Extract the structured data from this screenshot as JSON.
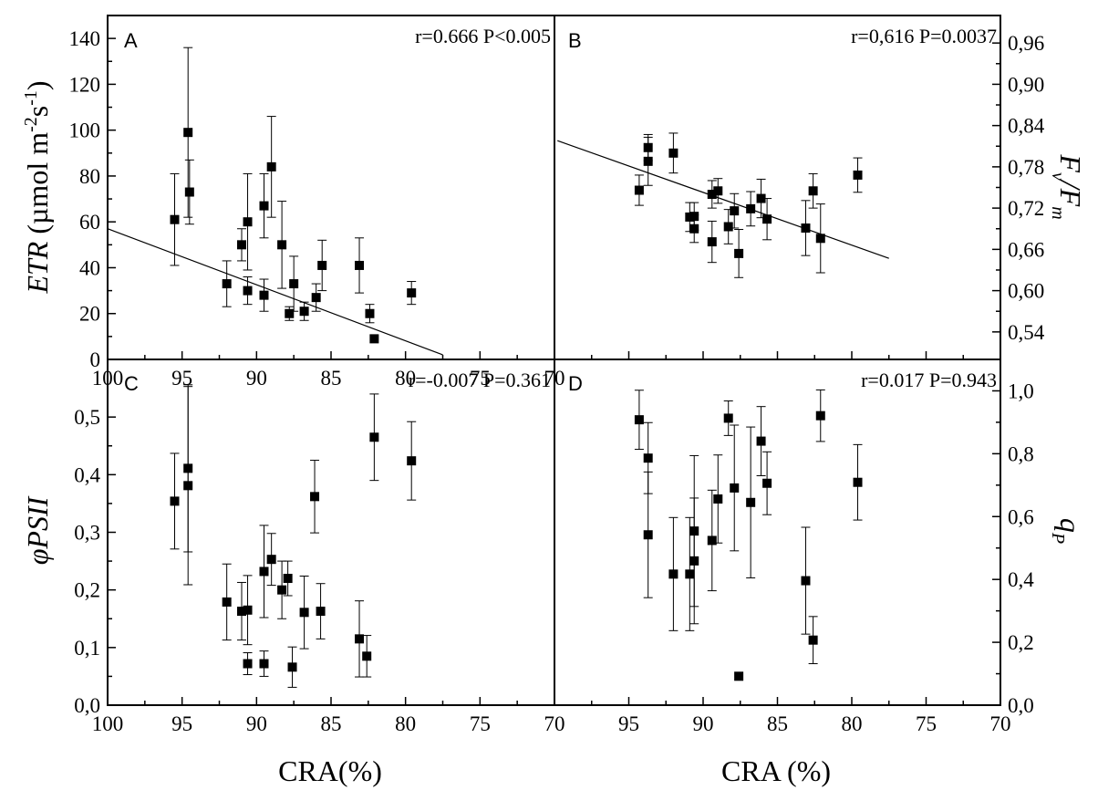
{
  "figure": {
    "xlabel_left": "CRA(%)",
    "xlabel_right": "CRA (%)"
  },
  "chart_data": [
    {
      "panel": "A",
      "type": "scatter",
      "stat": "r=0.666 P<0.005",
      "ylabel": "ETR (µmol m⁻² s⁻¹)",
      "xlim": [
        100,
        70
      ],
      "ylim": [
        0,
        150
      ],
      "x_ticks": [
        "100",
        "95",
        "90",
        "85",
        "80",
        "75",
        "70"
      ],
      "y_ticks": [
        "0",
        "20",
        "40",
        "60",
        "80",
        "100",
        "120",
        "140"
      ],
      "y_axis": "left",
      "regression": {
        "x1": 100,
        "y1": 57,
        "x2": 77.5,
        "y2": 2
      },
      "points": [
        {
          "x": 95.5,
          "y": 61,
          "err": 20
        },
        {
          "x": 94.6,
          "y": 99,
          "err": 37
        },
        {
          "x": 94.5,
          "y": 73,
          "err": 14
        },
        {
          "x": 92.0,
          "y": 33,
          "err": 10
        },
        {
          "x": 91.0,
          "y": 50,
          "err": 7
        },
        {
          "x": 90.6,
          "y": 60,
          "err": 21
        },
        {
          "x": 90.6,
          "y": 30,
          "err": 6
        },
        {
          "x": 89.5,
          "y": 67,
          "err": 14
        },
        {
          "x": 89.5,
          "y": 28,
          "err": 7
        },
        {
          "x": 89.0,
          "y": 84,
          "err": 22
        },
        {
          "x": 88.3,
          "y": 50,
          "err": 19
        },
        {
          "x": 87.8,
          "y": 20,
          "err": 3
        },
        {
          "x": 87.5,
          "y": 33,
          "err": 12
        },
        {
          "x": 86.8,
          "y": 21,
          "err": 4
        },
        {
          "x": 86.0,
          "y": 27,
          "err": 6
        },
        {
          "x": 85.6,
          "y": 41,
          "err": 11
        },
        {
          "x": 83.1,
          "y": 41,
          "err": 12
        },
        {
          "x": 82.4,
          "y": 20,
          "err": 4
        },
        {
          "x": 82.1,
          "y": 9,
          "err": 0
        },
        {
          "x": 79.6,
          "y": 29,
          "err": 5
        }
      ]
    },
    {
      "panel": "B",
      "type": "scatter",
      "stat": "r=0,616 P=0.0037",
      "ylabel": "Fv/Fm",
      "xlim": [
        100,
        70
      ],
      "ylim": [
        0.5,
        1.0
      ],
      "y_ticks": [
        "0,54",
        "0,60",
        "0,66",
        "0,72",
        "0,78",
        "0,84",
        "0,90",
        "0,96"
      ],
      "y_axis": "right",
      "regression": {
        "x1": 99.8,
        "y1": 0.818,
        "x2": 77.5,
        "y2": 0.647
      },
      "points": [
        {
          "x": 94.3,
          "y": 0.746,
          "err": 0.022
        },
        {
          "x": 93.7,
          "y": 0.808,
          "err": 0.019
        },
        {
          "x": 93.7,
          "y": 0.788,
          "err": 0.035
        },
        {
          "x": 92.0,
          "y": 0.8,
          "err": 0.029
        },
        {
          "x": 90.9,
          "y": 0.707,
          "err": 0.021
        },
        {
          "x": 90.6,
          "y": 0.708,
          "err": 0.02
        },
        {
          "x": 90.6,
          "y": 0.69,
          "err": 0.02
        },
        {
          "x": 89.4,
          "y": 0.74,
          "err": 0.02
        },
        {
          "x": 89.4,
          "y": 0.671,
          "err": 0.03
        },
        {
          "x": 89.0,
          "y": 0.745,
          "err": 0.018
        },
        {
          "x": 88.3,
          "y": 0.693,
          "err": 0.025
        },
        {
          "x": 87.9,
          "y": 0.716,
          "err": 0.025
        },
        {
          "x": 87.6,
          "y": 0.654,
          "err": 0.035
        },
        {
          "x": 86.8,
          "y": 0.719,
          "err": 0.025
        },
        {
          "x": 86.1,
          "y": 0.734,
          "err": 0.028
        },
        {
          "x": 85.7,
          "y": 0.704,
          "err": 0.03
        },
        {
          "x": 83.1,
          "y": 0.691,
          "err": 0.04
        },
        {
          "x": 82.6,
          "y": 0.745,
          "err": 0.025
        },
        {
          "x": 82.1,
          "y": 0.676,
          "err": 0.05
        },
        {
          "x": 79.6,
          "y": 0.768,
          "err": 0.025
        }
      ]
    },
    {
      "panel": "C",
      "type": "scatter",
      "stat": "r=-0.007 P=0.361",
      "ylabel": "φPSII",
      "xlim": [
        100,
        70
      ],
      "ylim": [
        0,
        0.6
      ],
      "x_ticks": [
        "100",
        "95",
        "90",
        "85",
        "80",
        "75",
        "70"
      ],
      "y_ticks": [
        "0,0",
        "0,1",
        "0,2",
        "0,3",
        "0,4",
        "0,5"
      ],
      "y_axis": "left",
      "points": [
        {
          "x": 95.5,
          "y": 0.354,
          "err": 0.083
        },
        {
          "x": 94.6,
          "y": 0.411,
          "err": 0.145
        },
        {
          "x": 94.6,
          "y": 0.381,
          "err": 0.172
        },
        {
          "x": 92.0,
          "y": 0.179,
          "err": 0.066
        },
        {
          "x": 91.0,
          "y": 0.163,
          "err": 0.05
        },
        {
          "x": 90.6,
          "y": 0.165,
          "err": 0.06
        },
        {
          "x": 90.6,
          "y": 0.072,
          "err": 0.019
        },
        {
          "x": 89.5,
          "y": 0.232,
          "err": 0.08
        },
        {
          "x": 89.5,
          "y": 0.072,
          "err": 0.022
        },
        {
          "x": 89.0,
          "y": 0.253,
          "err": 0.045
        },
        {
          "x": 88.3,
          "y": 0.2,
          "err": 0.05
        },
        {
          "x": 87.9,
          "y": 0.22,
          "err": 0.03
        },
        {
          "x": 87.6,
          "y": 0.066,
          "err": 0.035
        },
        {
          "x": 86.8,
          "y": 0.161,
          "err": 0.063
        },
        {
          "x": 86.1,
          "y": 0.362,
          "err": 0.063
        },
        {
          "x": 85.7,
          "y": 0.163,
          "err": 0.048
        },
        {
          "x": 83.1,
          "y": 0.115,
          "err": 0.066
        },
        {
          "x": 82.6,
          "y": 0.085,
          "err": 0.036
        },
        {
          "x": 82.1,
          "y": 0.465,
          "err": 0.075
        },
        {
          "x": 79.6,
          "y": 0.424,
          "err": 0.068
        }
      ]
    },
    {
      "panel": "D",
      "type": "scatter",
      "stat": "r=0.017 P=0.943",
      "ylabel": "qP",
      "xlim": [
        100,
        70
      ],
      "ylim": [
        0,
        1.1
      ],
      "x_ticks": [
        "95",
        "90",
        "85",
        "80",
        "75",
        "70"
      ],
      "y_ticks": [
        "0,0",
        "0,2",
        "0,4",
        "0,6",
        "0,8",
        "1,0"
      ],
      "y_axis": "right",
      "points": [
        {
          "x": 94.3,
          "y": 0.908,
          "err": 0.094
        },
        {
          "x": 93.7,
          "y": 0.786,
          "err": 0.113
        },
        {
          "x": 93.7,
          "y": 0.542,
          "err": 0.2
        },
        {
          "x": 92.0,
          "y": 0.417,
          "err": 0.18
        },
        {
          "x": 90.9,
          "y": 0.417,
          "err": 0.18
        },
        {
          "x": 90.6,
          "y": 0.554,
          "err": 0.24
        },
        {
          "x": 90.6,
          "y": 0.459,
          "err": 0.2
        },
        {
          "x": 89.4,
          "y": 0.524,
          "err": 0.16
        },
        {
          "x": 89.0,
          "y": 0.656,
          "err": 0.14
        },
        {
          "x": 88.3,
          "y": 0.913,
          "err": 0.055
        },
        {
          "x": 87.9,
          "y": 0.691,
          "err": 0.2
        },
        {
          "x": 87.6,
          "y": 0.092,
          "err": 0
        },
        {
          "x": 86.8,
          "y": 0.645,
          "err": 0.24
        },
        {
          "x": 86.1,
          "y": 0.84,
          "err": 0.11
        },
        {
          "x": 85.7,
          "y": 0.706,
          "err": 0.1
        },
        {
          "x": 83.1,
          "y": 0.396,
          "err": 0.17
        },
        {
          "x": 82.6,
          "y": 0.207,
          "err": 0.075
        },
        {
          "x": 82.1,
          "y": 0.921,
          "err": 0.082
        },
        {
          "x": 79.6,
          "y": 0.709,
          "err": 0.12
        }
      ]
    }
  ]
}
